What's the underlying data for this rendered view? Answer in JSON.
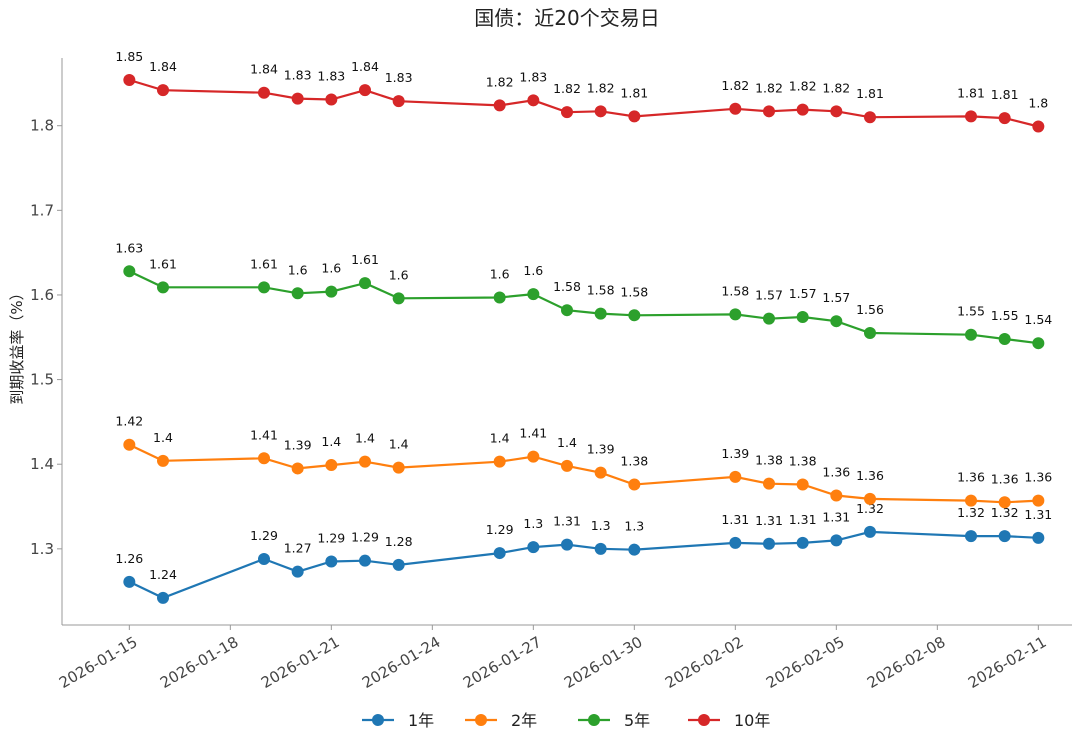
{
  "chart_data": {
    "type": "line",
    "title": "国债：近20个交易日",
    "xlabel": "",
    "ylabel": "到期收益率（%）",
    "ylim": [
      1.21,
      1.88
    ],
    "yticks": [
      1.3,
      1.4,
      1.5,
      1.6,
      1.7,
      1.8
    ],
    "ytick_labels": [
      "1.3",
      "1.4",
      "1.5",
      "1.6",
      "1.7",
      "1.8"
    ],
    "xticks": [
      "2026-01-15",
      "2026-01-18",
      "2026-01-21",
      "2026-01-24",
      "2026-01-27",
      "2026-01-30",
      "2026-02-02",
      "2026-02-05",
      "2026-02-08",
      "2026-02-11"
    ],
    "x": [
      "2026-01-15",
      "2026-01-16",
      "2026-01-19",
      "2026-01-20",
      "2026-01-21",
      "2026-01-22",
      "2026-01-23",
      "2026-01-26",
      "2026-01-27",
      "2026-01-28",
      "2026-01-29",
      "2026-01-30",
      "2026-02-02",
      "2026-02-03",
      "2026-02-04",
      "2026-02-05",
      "2026-02-06",
      "2026-02-09",
      "2026-02-10",
      "2026-02-11"
    ],
    "grid": false,
    "legend_position": "bottom",
    "series": [
      {
        "name": "1年",
        "color": "#1f77b4",
        "values": [
          1.261,
          1.242,
          1.288,
          1.273,
          1.285,
          1.286,
          1.281,
          1.295,
          1.302,
          1.305,
          1.3,
          1.299,
          1.307,
          1.306,
          1.307,
          1.31,
          1.32,
          1.315,
          1.315,
          1.313
        ],
        "labels": [
          "1.26",
          "1.24",
          "1.29",
          "1.27",
          "1.29",
          "1.29",
          "1.28",
          "1.29",
          "1.3",
          "1.31",
          "1.3",
          "1.3",
          "1.31",
          "1.31",
          "1.31",
          "1.31",
          "1.32",
          "1.32",
          "1.32",
          "1.31"
        ]
      },
      {
        "name": "2年",
        "color": "#ff7f0e",
        "values": [
          1.423,
          1.404,
          1.407,
          1.395,
          1.399,
          1.403,
          1.396,
          1.403,
          1.409,
          1.398,
          1.39,
          1.376,
          1.385,
          1.377,
          1.376,
          1.363,
          1.359,
          1.357,
          1.355,
          1.357
        ],
        "labels": [
          "1.42",
          "1.4",
          "1.41",
          "1.39",
          "1.4",
          "1.4",
          "1.4",
          "1.4",
          "1.41",
          "1.4",
          "1.39",
          "1.38",
          "1.39",
          "1.38",
          "1.38",
          "1.36",
          "1.36",
          "1.36",
          "1.36",
          "1.36"
        ]
      },
      {
        "name": "5年",
        "color": "#2ca02c",
        "values": [
          1.628,
          1.609,
          1.609,
          1.602,
          1.604,
          1.614,
          1.596,
          1.597,
          1.601,
          1.582,
          1.578,
          1.576,
          1.577,
          1.572,
          1.574,
          1.569,
          1.555,
          1.553,
          1.548,
          1.543
        ],
        "labels": [
          "1.63",
          "1.61",
          "1.61",
          "1.6",
          "1.6",
          "1.61",
          "1.6",
          "1.6",
          "1.6",
          "1.58",
          "1.58",
          "1.58",
          "1.58",
          "1.57",
          "1.57",
          "1.57",
          "1.56",
          "1.55",
          "1.55",
          "1.54"
        ]
      },
      {
        "name": "10年",
        "color": "#d62728",
        "values": [
          1.854,
          1.842,
          1.839,
          1.832,
          1.831,
          1.842,
          1.829,
          1.824,
          1.83,
          1.816,
          1.817,
          1.811,
          1.82,
          1.817,
          1.819,
          1.817,
          1.81,
          1.811,
          1.809,
          1.799
        ],
        "labels": [
          "1.85",
          "1.84",
          "1.84",
          "1.83",
          "1.83",
          "1.84",
          "1.83",
          "1.82",
          "1.83",
          "1.82",
          "1.82",
          "1.81",
          "1.82",
          "1.82",
          "1.82",
          "1.82",
          "1.81",
          "1.81",
          "1.81",
          "1.8"
        ]
      }
    ]
  }
}
